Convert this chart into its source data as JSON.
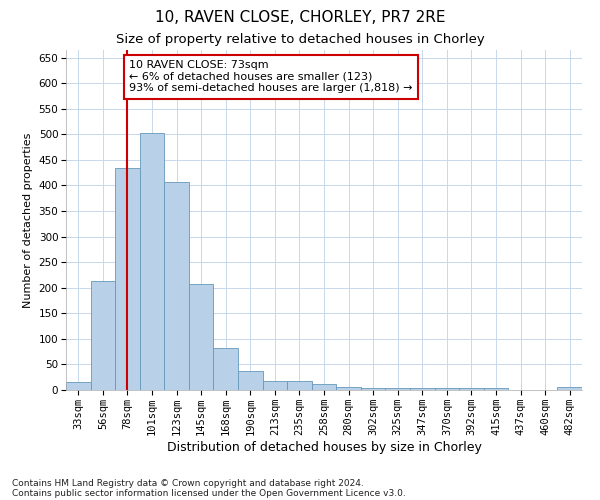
{
  "title1": "10, RAVEN CLOSE, CHORLEY, PR7 2RE",
  "title2": "Size of property relative to detached houses in Chorley",
  "xlabel": "Distribution of detached houses by size in Chorley",
  "ylabel": "Number of detached properties",
  "categories": [
    "33sqm",
    "56sqm",
    "78sqm",
    "101sqm",
    "123sqm",
    "145sqm",
    "168sqm",
    "190sqm",
    "213sqm",
    "235sqm",
    "258sqm",
    "280sqm",
    "302sqm",
    "325sqm",
    "347sqm",
    "370sqm",
    "392sqm",
    "415sqm",
    "437sqm",
    "460sqm",
    "482sqm"
  ],
  "values": [
    15,
    213,
    435,
    502,
    407,
    207,
    83,
    38,
    18,
    17,
    11,
    6,
    4,
    4,
    4,
    4,
    4,
    4,
    0,
    0,
    5
  ],
  "bar_color": "#b8d0e8",
  "bar_edge_color": "#6699bb",
  "background_color": "#ffffff",
  "grid_color": "#c8d8ec",
  "vline_color": "#cc0000",
  "vline_x_index": 1.97,
  "annotation_text": "10 RAVEN CLOSE: 73sqm\n← 6% of detached houses are smaller (123)\n93% of semi-detached houses are larger (1,818) →",
  "annotation_box_facecolor": "#ffffff",
  "annotation_box_edgecolor": "#cc0000",
  "ylim": [
    0,
    665
  ],
  "yticks": [
    0,
    50,
    100,
    150,
    200,
    250,
    300,
    350,
    400,
    450,
    500,
    550,
    600,
    650
  ],
  "footnote1": "Contains HM Land Registry data © Crown copyright and database right 2024.",
  "footnote2": "Contains public sector information licensed under the Open Government Licence v3.0.",
  "title1_fontsize": 11,
  "title2_fontsize": 9.5,
  "xlabel_fontsize": 9,
  "ylabel_fontsize": 8,
  "tick_fontsize": 7.5,
  "annotation_fontsize": 8,
  "footnote_fontsize": 6.5
}
